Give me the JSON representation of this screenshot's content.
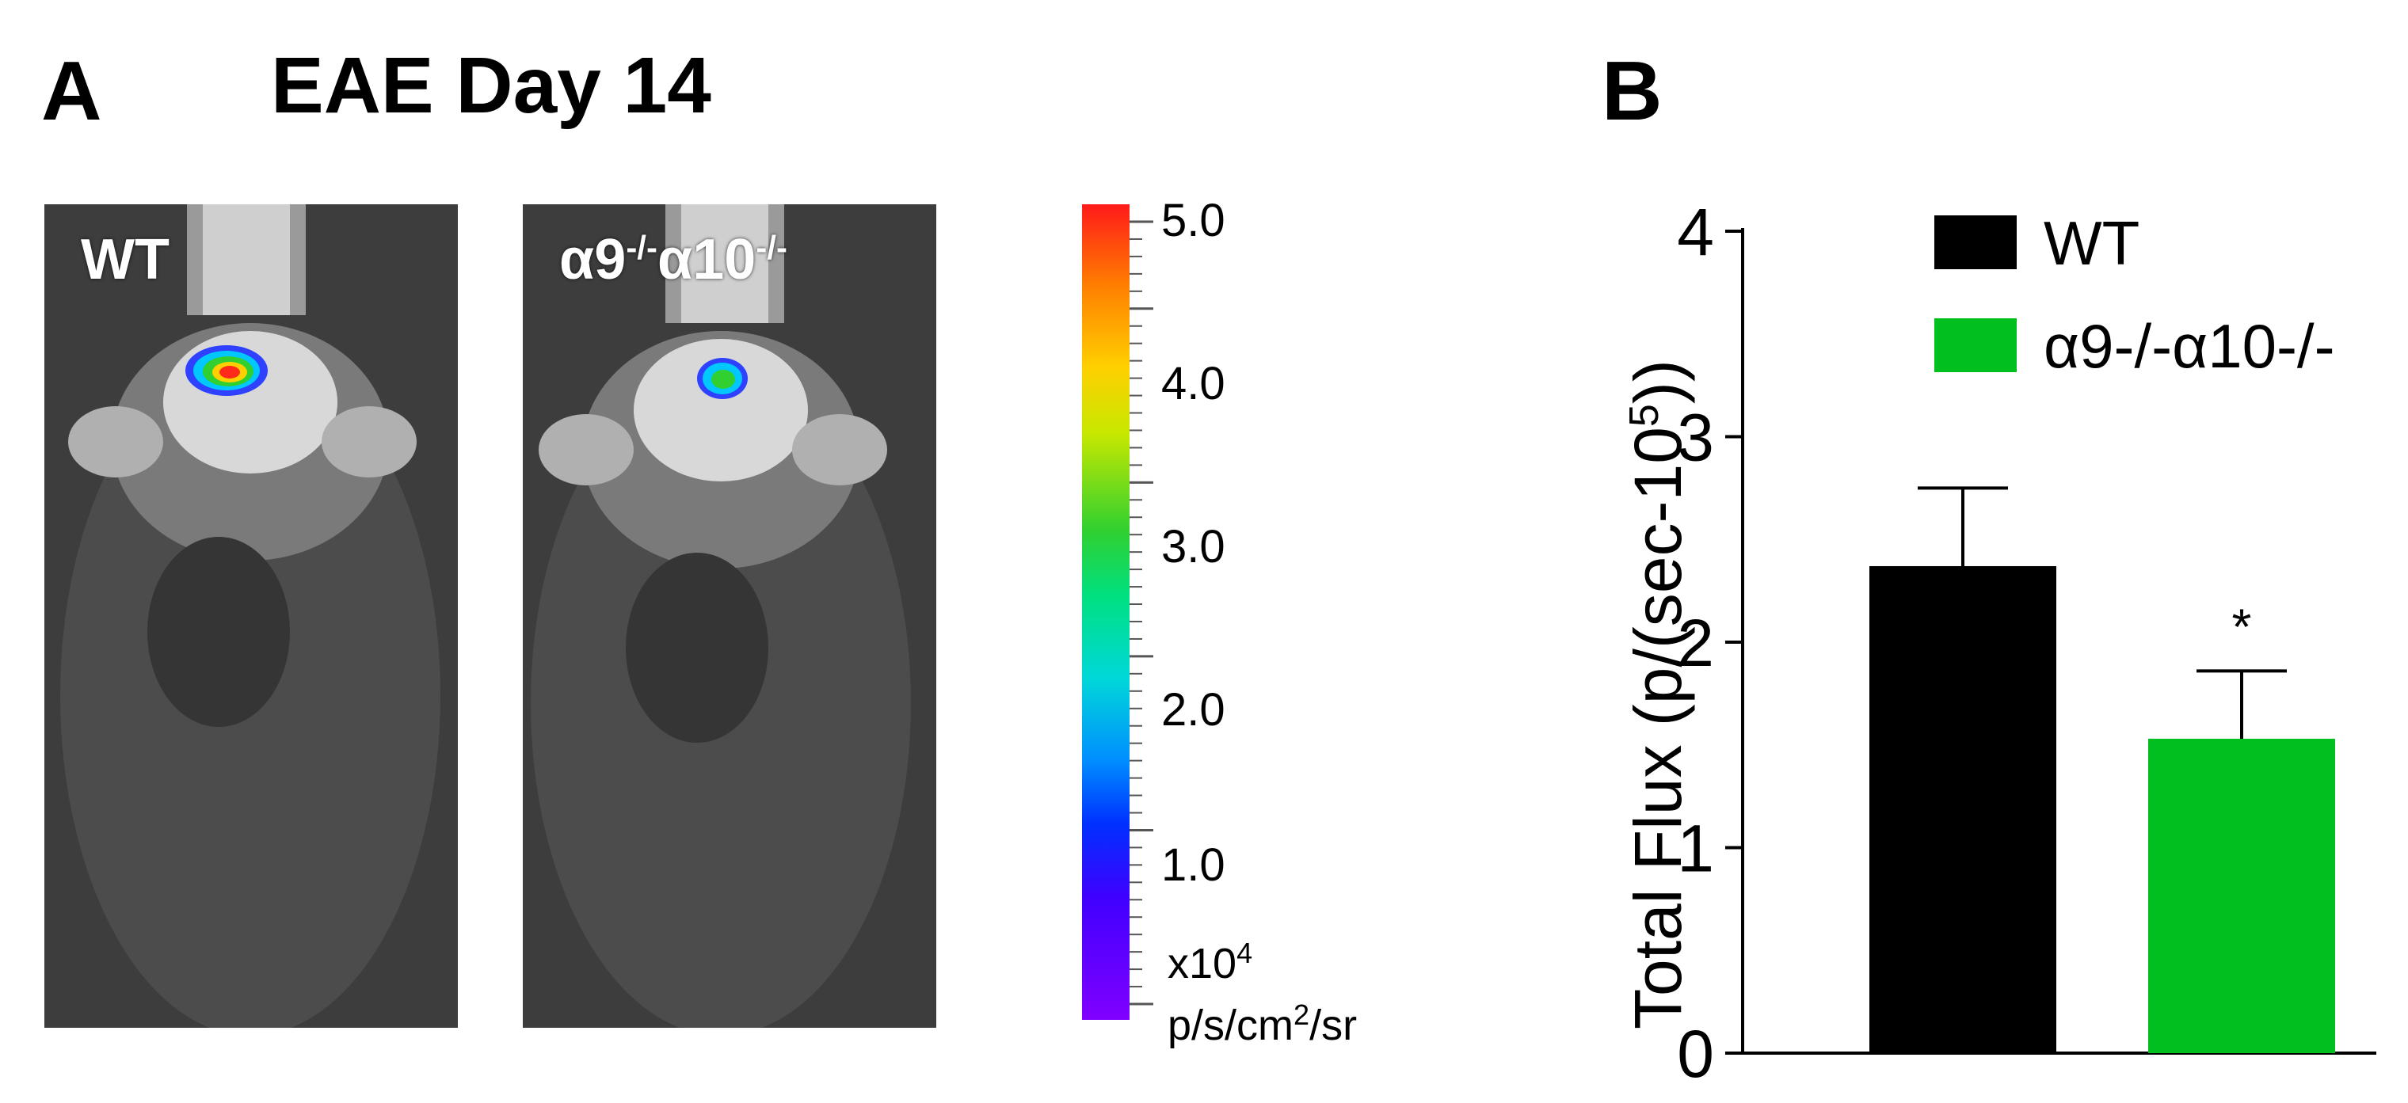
{
  "panel_a": {
    "letter": "A",
    "title": "EAE Day 14",
    "images": [
      {
        "label": "WT",
        "signal_intensity": "high"
      },
      {
        "label": "α9-/-α10-/-",
        "signal_intensity": "low"
      }
    ],
    "colorbar": {
      "labels": [
        "5.0",
        "4.0",
        "3.0",
        "2.0",
        "1.0"
      ],
      "unit_line1": "x10",
      "unit_line1_sup": "4",
      "unit_line2_prefix": "p/s/cm",
      "unit_line2_sup": "2",
      "unit_line2_suffix": "/sr",
      "min": 0.5,
      "max": 5.0
    }
  },
  "panel_b": {
    "letter": "B"
  },
  "chart_data": {
    "type": "bar",
    "title": "",
    "xlabel": "",
    "ylabel_prefix": "Total Flux (p/(sec-10",
    "ylabel_sup": "5",
    "ylabel_suffix": "))",
    "ylim": [
      0,
      4
    ],
    "yticks": [
      "0",
      "1",
      "2",
      "3",
      "4"
    ],
    "categories": [
      "WT",
      "α9-/-α10-/-"
    ],
    "series": [
      {
        "name": "WT",
        "value": 2.37,
        "error": 0.38,
        "color": "#000000"
      },
      {
        "name": "α9-/-α10-/-",
        "value": 1.53,
        "error": 0.33,
        "color": "#00bf1f",
        "significance": "*"
      }
    ],
    "legend_position": "top-right"
  }
}
